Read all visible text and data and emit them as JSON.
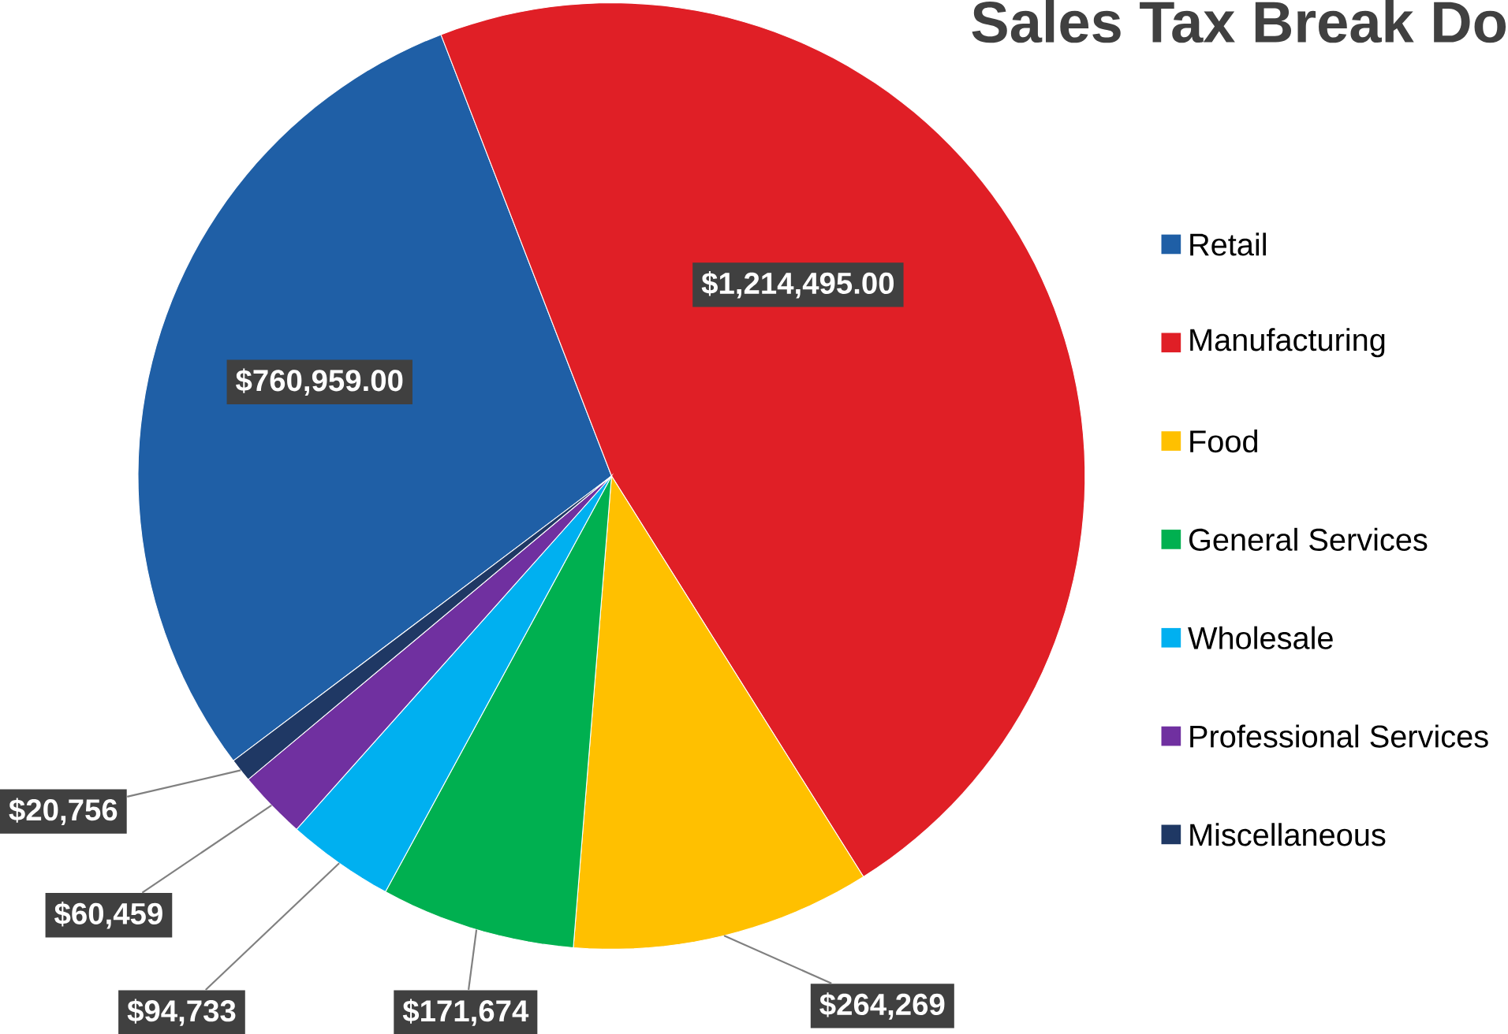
{
  "chart_data": {
    "type": "pie",
    "title": "Sales Tax Break Do",
    "categories": [
      "Retail",
      "Manufacturing",
      "Food",
      "General Services",
      "Wholesale",
      "Professional Services",
      "Miscellaneous"
    ],
    "values": [
      760959,
      1214495,
      264269,
      171674,
      94733,
      60459,
      20756
    ],
    "value_labels": [
      "$760,959.00",
      "$1,214,495.00",
      "$264,269",
      "$171,674",
      "$94,733",
      "$60,459",
      "$20,756"
    ],
    "colors": [
      "#1f5fa6",
      "#e01f26",
      "#ffc000",
      "#00b050",
      "#00b0f0",
      "#7030a0",
      "#1f3864"
    ],
    "legend": "right"
  }
}
